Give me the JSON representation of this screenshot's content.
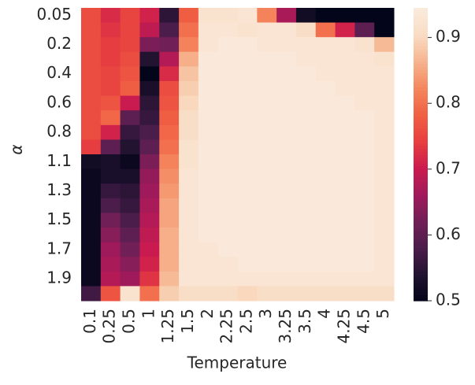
{
  "chart_data": {
    "type": "heatmap",
    "xlabel": "Temperature",
    "ylabel": "α",
    "x": [
      "0.1",
      "0.25",
      "0.5",
      "1",
      "1.25",
      "1.5",
      "2",
      "2.25",
      "2.5",
      "3",
      "3.25",
      "3.5",
      "4",
      "4.25",
      "4.5",
      "5"
    ],
    "y": [
      "0.05",
      null,
      "0.2",
      null,
      "0.4",
      null,
      "0.6",
      null,
      "0.8",
      null,
      "1.1",
      null,
      "1.3",
      null,
      "1.5",
      null,
      "1.7",
      null,
      "1.9",
      null
    ],
    "values": [
      [
        0.76,
        0.72,
        0.75,
        0.71,
        0.55,
        0.78,
        0.92,
        0.92,
        0.93,
        0.82,
        0.67,
        0.52,
        0.5,
        0.5,
        0.5,
        0.5
      ],
      [
        0.76,
        0.73,
        0.75,
        0.69,
        0.58,
        0.8,
        0.93,
        0.93,
        0.92,
        0.93,
        0.93,
        0.91,
        0.8,
        0.71,
        0.6,
        0.5
      ],
      [
        0.76,
        0.74,
        0.75,
        0.63,
        0.62,
        0.82,
        0.93,
        0.94,
        0.94,
        0.93,
        0.93,
        0.93,
        0.93,
        0.93,
        0.92,
        0.87
      ],
      [
        0.76,
        0.74,
        0.76,
        0.54,
        0.68,
        0.86,
        0.94,
        0.94,
        0.94,
        0.94,
        0.94,
        0.93,
        0.93,
        0.93,
        0.93,
        0.92
      ],
      [
        0.76,
        0.75,
        0.77,
        0.5,
        0.72,
        0.88,
        0.94,
        0.94,
        0.94,
        0.94,
        0.94,
        0.94,
        0.93,
        0.93,
        0.93,
        0.93
      ],
      [
        0.76,
        0.75,
        0.78,
        0.53,
        0.76,
        0.89,
        0.94,
        0.94,
        0.94,
        0.94,
        0.94,
        0.94,
        0.94,
        0.93,
        0.93,
        0.93
      ],
      [
        0.76,
        0.77,
        0.7,
        0.55,
        0.77,
        0.9,
        0.94,
        0.94,
        0.94,
        0.94,
        0.94,
        0.94,
        0.94,
        0.94,
        0.93,
        0.93
      ],
      [
        0.76,
        0.79,
        0.6,
        0.56,
        0.78,
        0.91,
        0.94,
        0.94,
        0.94,
        0.94,
        0.94,
        0.94,
        0.94,
        0.94,
        0.94,
        0.93
      ],
      [
        0.76,
        0.71,
        0.56,
        0.58,
        0.79,
        0.91,
        0.94,
        0.94,
        0.94,
        0.94,
        0.94,
        0.94,
        0.94,
        0.94,
        0.94,
        0.93
      ],
      [
        0.74,
        0.6,
        0.54,
        0.6,
        0.8,
        0.92,
        0.94,
        0.94,
        0.94,
        0.94,
        0.94,
        0.94,
        0.94,
        0.94,
        0.94,
        0.93
      ],
      [
        0.52,
        0.53,
        0.51,
        0.63,
        0.82,
        0.92,
        0.94,
        0.94,
        0.94,
        0.94,
        0.94,
        0.94,
        0.94,
        0.94,
        0.94,
        0.93
      ],
      [
        0.51,
        0.53,
        0.53,
        0.65,
        0.83,
        0.93,
        0.94,
        0.94,
        0.94,
        0.94,
        0.94,
        0.94,
        0.94,
        0.94,
        0.94,
        0.93
      ],
      [
        0.51,
        0.56,
        0.55,
        0.66,
        0.84,
        0.93,
        0.94,
        0.94,
        0.94,
        0.94,
        0.94,
        0.94,
        0.94,
        0.94,
        0.94,
        0.93
      ],
      [
        0.51,
        0.58,
        0.56,
        0.67,
        0.85,
        0.93,
        0.94,
        0.94,
        0.94,
        0.94,
        0.94,
        0.94,
        0.94,
        0.94,
        0.94,
        0.93
      ],
      [
        0.51,
        0.62,
        0.58,
        0.68,
        0.85,
        0.93,
        0.94,
        0.94,
        0.94,
        0.94,
        0.94,
        0.94,
        0.94,
        0.94,
        0.94,
        0.93
      ],
      [
        0.51,
        0.64,
        0.6,
        0.69,
        0.86,
        0.93,
        0.94,
        0.94,
        0.94,
        0.94,
        0.94,
        0.94,
        0.94,
        0.94,
        0.94,
        0.93
      ],
      [
        0.51,
        0.66,
        0.62,
        0.7,
        0.86,
        0.93,
        0.93,
        0.94,
        0.94,
        0.94,
        0.94,
        0.94,
        0.94,
        0.94,
        0.94,
        0.93
      ],
      [
        0.51,
        0.67,
        0.64,
        0.71,
        0.86,
        0.93,
        0.93,
        0.93,
        0.94,
        0.94,
        0.94,
        0.94,
        0.94,
        0.94,
        0.94,
        0.93
      ],
      [
        0.51,
        0.68,
        0.66,
        0.73,
        0.87,
        0.93,
        0.93,
        0.93,
        0.93,
        0.93,
        0.93,
        0.93,
        0.93,
        0.93,
        0.93,
        0.93
      ],
      [
        0.57,
        0.77,
        0.92,
        0.8,
        0.89,
        0.91,
        0.91,
        0.91,
        0.9,
        0.91,
        0.91,
        0.91,
        0.91,
        0.91,
        0.91,
        0.91
      ]
    ],
    "zlim": [
      0.5,
      0.945
    ],
    "zticks": [
      0.5,
      0.6,
      0.7,
      0.8,
      0.9
    ],
    "colors": [
      "#03051a",
      "#221331",
      "#4c1d4b",
      "#711f57",
      "#a11a5b",
      "#cb1b4f",
      "#e83f3f",
      "#f06043",
      "#f4875e",
      "#f6b48e",
      "#f9dcc4",
      "#faebdd"
    ]
  }
}
